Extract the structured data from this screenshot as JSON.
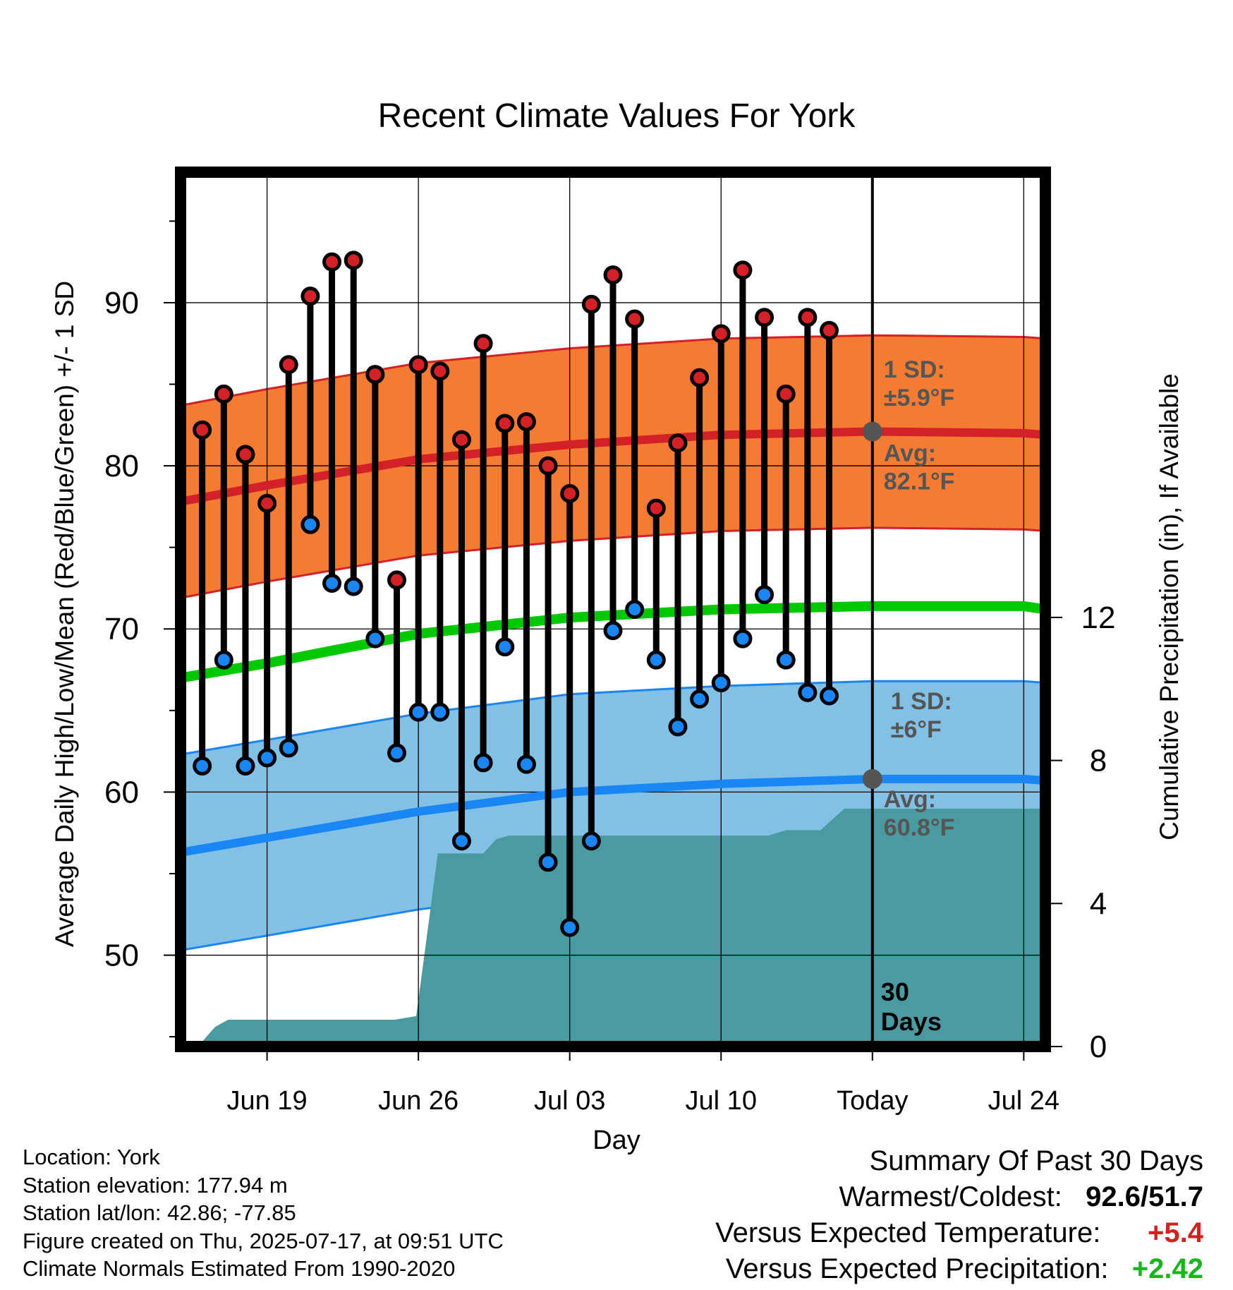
{
  "chart_data": {
    "type": "line",
    "title": "Recent Climate Values For York",
    "xlabel": "Day",
    "ylabel": "Average Daily High/Low/Mean (Red/Blue/Green) +/- 1 SD",
    "y2label": "Cumulative Precipitation (in), If Available",
    "x_range": [
      "Jun 15",
      "Jul 25"
    ],
    "ylim": [
      44.4,
      98
    ],
    "y2lim": [
      0,
      24.45
    ],
    "x_ticks": [
      {
        "date": "Jun 19",
        "label": "Jun 19"
      },
      {
        "date": "Jun 26",
        "label": "Jun 26"
      },
      {
        "date": "Jul 03",
        "label": "Jul 03"
      },
      {
        "date": "Jul 10",
        "label": "Jul 10"
      },
      {
        "date": "Jul 17",
        "label": "Today"
      },
      {
        "date": "Jul 24",
        "label": "Jul 24"
      }
    ],
    "y_ticks": [
      50,
      60,
      70,
      80,
      90
    ],
    "y2_ticks": [
      0,
      4,
      8,
      12
    ],
    "grid": true,
    "today": "Jul 17",
    "days_label": "30\nDays",
    "observed": {
      "dates": [
        "Jun 16",
        "Jun 17",
        "Jun 18",
        "Jun 19",
        "Jun 20",
        "Jun 21",
        "Jun 22",
        "Jun 23",
        "Jun 24",
        "Jun 25",
        "Jun 26",
        "Jun 27",
        "Jun 28",
        "Jun 29",
        "Jun 30",
        "Jul 01",
        "Jul 02",
        "Jul 03",
        "Jul 04",
        "Jul 05",
        "Jul 06",
        "Jul 07",
        "Jul 08",
        "Jul 09",
        "Jul 10",
        "Jul 11",
        "Jul 12",
        "Jul 13",
        "Jul 14",
        "Jul 15",
        "Jul 16"
      ],
      "highs": [
        82.2,
        84.4,
        80.7,
        77.7,
        86.2,
        90.4,
        92.5,
        92.6,
        85.6,
        73.0,
        86.2,
        85.8,
        81.6,
        87.5,
        82.6,
        82.7,
        80.0,
        78.3,
        89.9,
        91.7,
        89.0,
        77.4,
        81.4,
        85.4,
        88.1,
        92.0,
        89.1,
        84.4,
        89.1,
        88.3,
        null
      ],
      "lows": [
        61.6,
        68.1,
        61.6,
        62.1,
        62.7,
        76.4,
        72.8,
        72.6,
        69.4,
        62.4,
        64.9,
        64.9,
        57.0,
        61.8,
        68.9,
        61.7,
        55.7,
        51.7,
        57.0,
        69.9,
        71.2,
        68.1,
        64.0,
        65.7,
        66.7,
        69.4,
        72.1,
        68.1,
        66.1,
        65.9,
        null
      ]
    },
    "normals": {
      "dates": [
        "Jun 15",
        "Jun 19",
        "Jun 26",
        "Jul 03",
        "Jul 10",
        "Jul 17",
        "Jul 24",
        "Jul 25"
      ],
      "high_avg": [
        77.8,
        78.8,
        80.4,
        81.3,
        81.9,
        82.1,
        82.0,
        81.9
      ],
      "low_avg": [
        56.3,
        57.2,
        58.8,
        60.0,
        60.5,
        60.8,
        60.8,
        60.7
      ],
      "mean_avg": [
        67.0,
        67.9,
        69.7,
        70.7,
        71.2,
        71.4,
        71.4,
        71.2
      ],
      "high_sd": 5.9,
      "low_sd": 6.0
    },
    "precipitation": {
      "dates": [
        "Jun 15.8",
        "Jun 16.6",
        "Jun 17.2",
        "Jun 21",
        "Jun 24.9",
        "Jun 25.9",
        "Jun 26.9",
        "Jun 28",
        "Jun 29",
        "Jun 29.6",
        "Jun 30.2",
        "Jul 12.2",
        "Jul 13",
        "Jul 14.6",
        "Jul 15.7",
        "Jul 25"
      ],
      "values": [
        0,
        0.55,
        0.75,
        0.75,
        0.75,
        0.85,
        5.4,
        5.4,
        5.4,
        5.8,
        5.9,
        5.9,
        6.05,
        6.05,
        6.65,
        6.65
      ]
    },
    "annotations": {
      "high_sd": "1 SD:\n±5.9°F",
      "high_avg": "Avg:\n82.1°F",
      "low_sd": "1 SD:\n±6°F",
      "low_avg": "Avg:\n60.8°F"
    },
    "colors": {
      "high_band": "#f47c32",
      "high_line": "#d42127",
      "low_band": "#83c0e6",
      "low_line": "#1a86f4",
      "mean_line": "#00c800",
      "precip": "#4a9aa2",
      "high_dot": "#d42127",
      "low_dot": "#1a86f4",
      "annotation": "#555555"
    }
  },
  "footer": {
    "location": "Location: York",
    "elevation": "Station elevation: 177.94 m",
    "latlon": "Station lat/lon: 42.86; -77.85",
    "created": "Figure created on Thu, 2025-07-17, at 09:51 UTC",
    "normals": "Climate Normals Estimated From 1990-2020"
  },
  "summary": {
    "title": "Summary Of Past 30 Days",
    "warmest_coldest_label": "Warmest/Coldest:",
    "warmest": "92.6",
    "separator": "/",
    "coldest": "51.7",
    "temp_label": "Versus Expected Temperature:",
    "temp_value": "+5.4",
    "precip_label": "Versus Expected Precipitation:",
    "precip_value": "+2.42"
  }
}
